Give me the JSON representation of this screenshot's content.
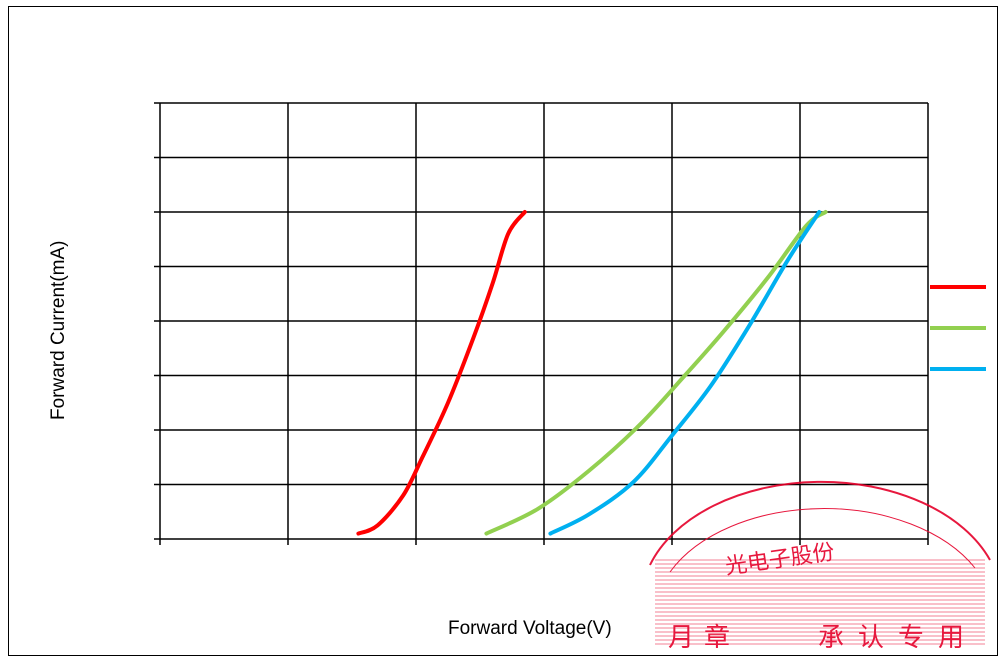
{
  "chart_data": {
    "type": "line",
    "title": "",
    "xlabel": "Forward Voltage(V)",
    "ylabel": "Forward Current(mA)",
    "xlim": [
      0,
      6
    ],
    "ylim": [
      0,
      8
    ],
    "x_ticks": [
      0,
      1,
      2,
      3,
      4,
      5,
      6
    ],
    "y_ticks": [
      0,
      1,
      2,
      3,
      4,
      5,
      6,
      7,
      8
    ],
    "grid": true,
    "legend_position": "right",
    "series": [
      {
        "color": "#ff0000",
        "points": [
          [
            1.55,
            0.1
          ],
          [
            1.7,
            0.25
          ],
          [
            1.9,
            0.8
          ],
          [
            2.05,
            1.5
          ],
          [
            2.25,
            2.5
          ],
          [
            2.45,
            3.7
          ],
          [
            2.6,
            4.7
          ],
          [
            2.72,
            5.6
          ],
          [
            2.85,
            6.0
          ]
        ]
      },
      {
        "color": "#92d050",
        "points": [
          [
            2.55,
            0.1
          ],
          [
            2.95,
            0.55
          ],
          [
            3.35,
            1.25
          ],
          [
            3.75,
            2.1
          ],
          [
            4.1,
            3.0
          ],
          [
            4.4,
            3.8
          ],
          [
            4.75,
            4.8
          ],
          [
            5.05,
            5.75
          ],
          [
            5.2,
            6.0
          ]
        ]
      },
      {
        "color": "#00b0f0",
        "points": [
          [
            3.05,
            0.1
          ],
          [
            3.35,
            0.45
          ],
          [
            3.7,
            1.05
          ],
          [
            4.0,
            1.9
          ],
          [
            4.3,
            2.8
          ],
          [
            4.6,
            3.9
          ],
          [
            4.9,
            5.1
          ],
          [
            5.15,
            6.0
          ]
        ]
      }
    ]
  },
  "stamp": {
    "ring_text": "光电子股份",
    "bottom_text": "承认专用",
    "fragment_left": "月章",
    "color": "#e5002a"
  }
}
